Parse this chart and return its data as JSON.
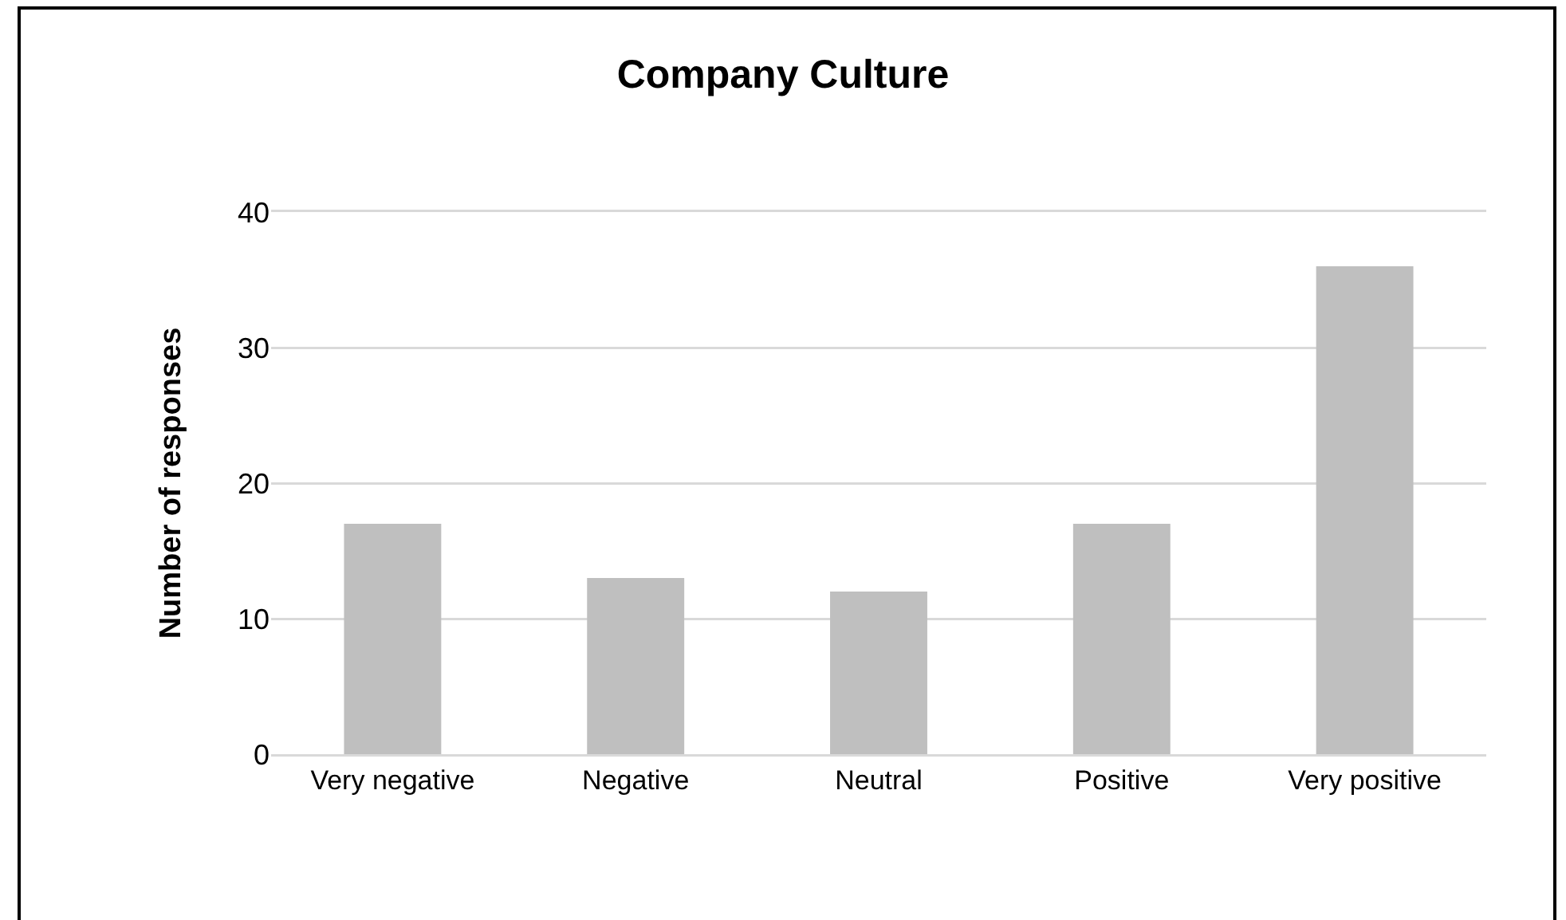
{
  "chart_data": {
    "type": "bar",
    "title": "Company Culture",
    "ylabel": "Number of responses",
    "categories": [
      "Very negative",
      "Negative",
      "Neutral",
      "Positive",
      "Very positive"
    ],
    "values": [
      17,
      13,
      12,
      17,
      36
    ],
    "color": "#bfbfbf",
    "ylim": [
      0,
      40
    ],
    "yticks": [
      0,
      10,
      20,
      30,
      40
    ],
    "grid": "y"
  }
}
